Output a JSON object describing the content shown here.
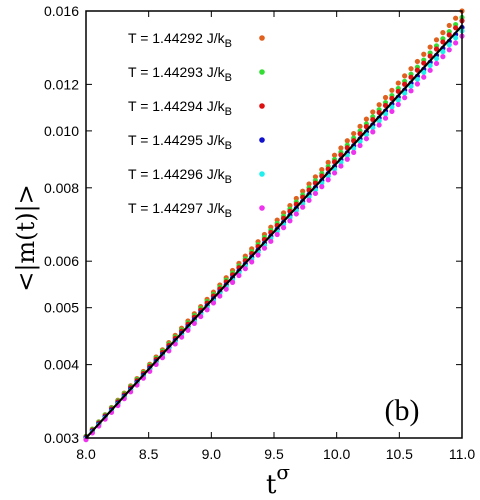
{
  "chart_data": {
    "type": "scatter",
    "panel_label": "(b)",
    "xlabel": {
      "base": "t",
      "sup": "σ"
    },
    "ylabel": "<|m(t)|>",
    "xlim": [
      8.0,
      11.0
    ],
    "ylim": [
      0.003,
      0.016
    ],
    "yscale": "log",
    "xticks": [
      "8.0",
      "8.5",
      "9.0",
      "9.5",
      "10.0",
      "10.5",
      "11.0"
    ],
    "yticks": [
      "0.003",
      "0.004",
      "0.005",
      "0.006",
      "0.008",
      "0.010",
      "0.012",
      "0.016"
    ],
    "legend_position": "top-left",
    "grid": false,
    "fit_line": {
      "x": [
        8.0,
        11.0
      ],
      "y": [
        0.003,
        0.0151
      ],
      "color": "#000000"
    },
    "series": [
      {
        "label": "T = 1.44292 J/k",
        "sub": "B",
        "color": "#E0601E",
        "y_start": 0.00302,
        "y_end": 0.016
      },
      {
        "label": "T = 1.44293 J/k",
        "sub": "B",
        "color": "#33DD33",
        "y_start": 0.00302,
        "y_end": 0.0156
      },
      {
        "label": "T = 1.44294 J/k",
        "sub": "B",
        "color": "#DD1111",
        "y_start": 0.00301,
        "y_end": 0.0154
      },
      {
        "label": "T = 1.44295 J/k",
        "sub": "B",
        "color": "#1111CC",
        "y_start": 0.003,
        "y_end": 0.015
      },
      {
        "label": "T = 1.44296 J/k",
        "sub": "B",
        "color": "#22EEEE",
        "y_start": 0.00299,
        "y_end": 0.0148
      },
      {
        "label": "T = 1.44297 J/k",
        "sub": "B",
        "color": "#EE33EE",
        "y_start": 0.00298,
        "y_end": 0.0145
      }
    ]
  }
}
